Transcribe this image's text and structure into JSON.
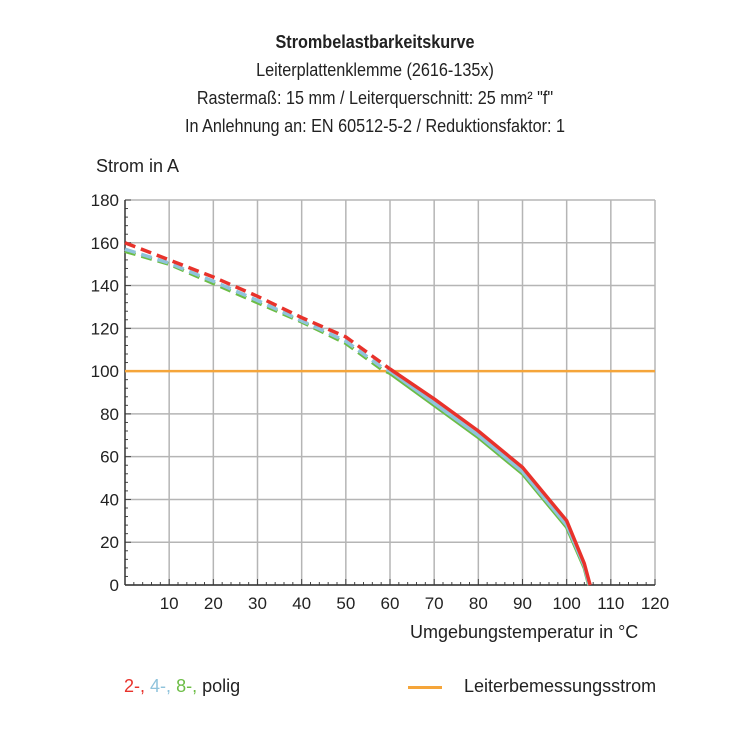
{
  "title": "Strombelastbarkeitskurve",
  "subtitle1": "Leiterplattenklemme (2616-135x)",
  "subtitle2": "Rastermaß: 15 mm / Leiterquerschnitt: 25 mm² \"f\"",
  "subtitle3": "In Anlehnung an: EN 60512-5-2 / Reduktionsfaktor: 1",
  "chart_data": {
    "type": "line",
    "title": "Strombelastbarkeitskurve",
    "xlabel": "Umgebungstemperatur in °C",
    "ylabel": "Strom in A",
    "xlim": [
      0,
      120
    ],
    "ylim": [
      0,
      180
    ],
    "xticks": [
      10,
      20,
      30,
      40,
      50,
      60,
      70,
      80,
      90,
      100,
      110,
      120
    ],
    "yticks": [
      0,
      20,
      40,
      60,
      80,
      100,
      120,
      140,
      160,
      180
    ],
    "grid": true,
    "dashed_below_x": 60,
    "series": [
      {
        "name": "2-",
        "color": "#e8322b",
        "x": [
          0,
          10,
          20,
          30,
          40,
          50,
          58,
          60,
          70,
          80,
          90,
          100,
          104,
          105.3
        ],
        "y": [
          160,
          152,
          144,
          135,
          125,
          116,
          104,
          101,
          87,
          72,
          55,
          30,
          10,
          0
        ]
      },
      {
        "name": "4-",
        "color": "#8fc3dc",
        "x": [
          0,
          10,
          20,
          30,
          40,
          50,
          58,
          60,
          70,
          80,
          90,
          100,
          104,
          105.1
        ],
        "y": [
          157,
          150.5,
          142,
          133,
          123.5,
          114,
          102,
          100,
          85,
          70,
          53,
          28,
          9,
          0
        ]
      },
      {
        "name": "8-",
        "color": "#6cbd45",
        "x": [
          0,
          10,
          20,
          30,
          40,
          50,
          58,
          60,
          70,
          80,
          90,
          100,
          104,
          105
        ],
        "y": [
          156,
          150,
          141,
          132,
          123,
          113,
          101,
          99,
          84,
          69,
          52,
          27,
          8,
          0
        ]
      }
    ],
    "reference_line": {
      "name": "Leiterbemessungsstrom",
      "y": 100,
      "color": "#f5a53a"
    }
  },
  "legend": {
    "item1": "2-,",
    "item2": "4-,",
    "item3": "8-,",
    "suffix": "polig",
    "reference": "Leiterbemessungsstrom"
  }
}
